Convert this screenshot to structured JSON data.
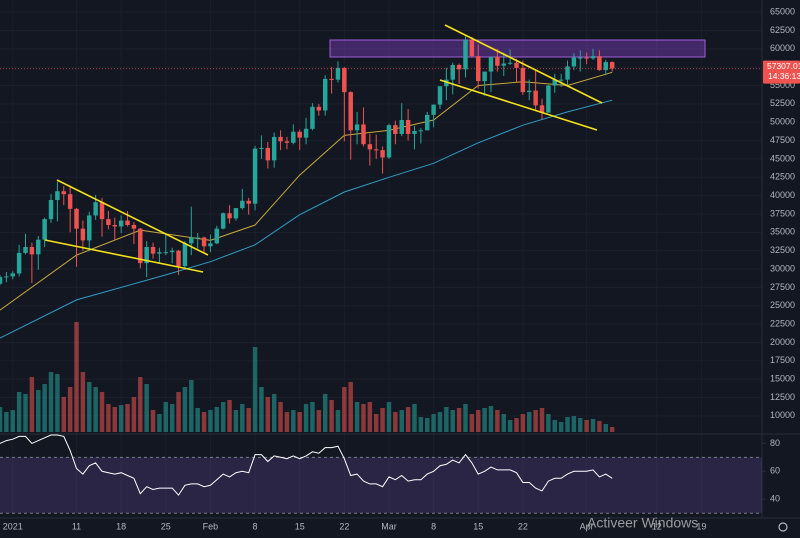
{
  "chart_data": {
    "type": "candlestick",
    "x": [
      -2,
      -1,
      0,
      1,
      2,
      3,
      4,
      5,
      6,
      7,
      8,
      9,
      10,
      11,
      12,
      13,
      14,
      15,
      16,
      17,
      18,
      19,
      20,
      21,
      22,
      23,
      24,
      25,
      26,
      27,
      28,
      29,
      30,
      31,
      32,
      33,
      34,
      35,
      36,
      37,
      38,
      39,
      40,
      41,
      42,
      43,
      44,
      45,
      46,
      47,
      48,
      49,
      50,
      51,
      52,
      53,
      54,
      55,
      56,
      57,
      58,
      59,
      60,
      61,
      62,
      63,
      64,
      65,
      66,
      67,
      68,
      69,
      70,
      71,
      72,
      73,
      74,
      75,
      76,
      77,
      78,
      79,
      80,
      81,
      82,
      83,
      84,
      85,
      86,
      87,
      88,
      89,
      90,
      91,
      92,
      93,
      94
    ],
    "open": [
      28000,
      28900,
      29000,
      29400,
      32200,
      33000,
      32000,
      34000,
      36800,
      39400,
      40600,
      40200,
      38200,
      35500,
      33900,
      37300,
      39100,
      36800,
      36000,
      35800,
      36600,
      36000,
      35500,
      30800,
      33000,
      32100,
      32300,
      32300,
      32500,
      30400,
      33500,
      34300,
      34300,
      33100,
      33500,
      35500,
      37600,
      36900,
      38300,
      39300,
      38900,
      46400,
      46500,
      44800,
      48000,
      47400,
      47200,
      48700,
      47900,
      49100,
      52100,
      51600,
      55900,
      55800,
      57400,
      54100,
      48900,
      49700,
      47000,
      46300,
      46200,
      45200,
      49600,
      48400,
      50300,
      48400,
      48800,
      48900,
      51000,
      52400,
      54900,
      55800,
      57800,
      57200,
      61200,
      59000,
      55600,
      56900,
      58900,
      57700,
      58000,
      58100,
      57400,
      54100,
      54300,
      52300,
      51300,
      55000,
      55800,
      55800,
      57600,
      58800,
      58800,
      58700,
      59000,
      57100,
      58200
    ],
    "high": [
      29200,
      29600,
      29700,
      33300,
      34800,
      33600,
      34500,
      37000,
      40200,
      41900,
      41300,
      41400,
      38300,
      36600,
      37800,
      40100,
      39700,
      37900,
      37000,
      37300,
      37900,
      36400,
      35600,
      33800,
      33600,
      32900,
      34900,
      32900,
      32600,
      33800,
      38500,
      34900,
      34400,
      34700,
      35900,
      37700,
      38700,
      38300,
      40900,
      39700,
      46800,
      48200,
      47300,
      48600,
      48900,
      48000,
      49700,
      49000,
      50600,
      52600,
      52500,
      56400,
      57500,
      58300,
      57500,
      54200,
      51400,
      52000,
      48400,
      48300,
      46700,
      49800,
      50200,
      52600,
      51800,
      49500,
      49200,
      51400,
      52400,
      54900,
      57400,
      58100,
      58000,
      61700,
      61600,
      60600,
      56900,
      58900,
      60000,
      59500,
      59900,
      58600,
      58400,
      55800,
      57200,
      53200,
      55100,
      56600,
      56600,
      58400,
      59400,
      59800,
      59500,
      60000,
      59800,
      58500,
      58300
    ],
    "low": [
      27800,
      28200,
      28600,
      29000,
      32000,
      28100,
      29900,
      33000,
      36300,
      36500,
      38700,
      35000,
      30300,
      32500,
      32400,
      36700,
      34400,
      35400,
      33900,
      34900,
      35800,
      33400,
      30100,
      28900,
      31400,
      30900,
      31900,
      30800,
      29200,
      29900,
      31900,
      32800,
      32200,
      32300,
      33400,
      35400,
      36200,
      36600,
      38100,
      37400,
      38000,
      45000,
      43700,
      43800,
      46200,
      46300,
      47000,
      46200,
      47000,
      48900,
      50900,
      50900,
      53900,
      55400,
      47400,
      44900,
      47000,
      46700,
      44100,
      45000,
      43000,
      45000,
      47000,
      48100,
      47500,
      46300,
      47100,
      48900,
      49300,
      51800,
      53000,
      53800,
      55200,
      56100,
      58800,
      54600,
      53600,
      54100,
      56900,
      56300,
      57800,
      55500,
      53700,
      53000,
      51700,
      50400,
      51300,
      54000,
      54800,
      54900,
      57100,
      56900,
      57900,
      58500,
      57000,
      56400,
      56900
    ],
    "close": [
      28900,
      29000,
      29400,
      32200,
      33000,
      32000,
      34000,
      36800,
      39400,
      40600,
      40200,
      38200,
      35500,
      33900,
      37300,
      39100,
      36800,
      36000,
      35800,
      36600,
      36000,
      35500,
      30800,
      33000,
      32100,
      32300,
      32300,
      32500,
      30400,
      33500,
      34300,
      34300,
      33100,
      33500,
      35500,
      37600,
      36900,
      38300,
      39300,
      38900,
      46400,
      46500,
      44800,
      48000,
      47400,
      47200,
      48700,
      47900,
      49100,
      52100,
      51600,
      55900,
      55800,
      57400,
      54100,
      48900,
      49700,
      47000,
      46300,
      46200,
      45200,
      49600,
      48400,
      50300,
      48400,
      48800,
      48900,
      51000,
      52400,
      54900,
      55800,
      57800,
      57200,
      61200,
      59000,
      55600,
      56900,
      58900,
      57700,
      58000,
      58100,
      57400,
      54100,
      54300,
      52300,
      51300,
      55000,
      55800,
      55800,
      57600,
      58800,
      58800,
      58700,
      59000,
      57100,
      58200,
      57307.01
    ],
    "volume": [
      25,
      20,
      22,
      40,
      38,
      55,
      42,
      48,
      60,
      58,
      35,
      45,
      110,
      60,
      50,
      45,
      40,
      28,
      25,
      27,
      28,
      35,
      55,
      48,
      22,
      18,
      30,
      28,
      40,
      45,
      52,
      24,
      20,
      22,
      25,
      30,
      32,
      22,
      28,
      24,
      85,
      45,
      35,
      38,
      30,
      20,
      22,
      20,
      28,
      30,
      22,
      38,
      32,
      22,
      45,
      50,
      30,
      28,
      30,
      18,
      24,
      30,
      20,
      22,
      25,
      28,
      15,
      14,
      18,
      20,
      25,
      22,
      24,
      28,
      18,
      22,
      24,
      26,
      22,
      18,
      12,
      14,
      18,
      20,
      22,
      24,
      18,
      12,
      10,
      15,
      16,
      14,
      12,
      13,
      11,
      8,
      5
    ],
    "up_color": "#26a69a",
    "down_color": "#ef5350",
    "xlim": [
      -2,
      117.5
    ],
    "ylim": [
      7800,
      66650
    ],
    "xticks": [
      {
        "value": 0,
        "label": "2021"
      },
      {
        "value": 10,
        "label": "11"
      },
      {
        "value": 17,
        "label": "18"
      },
      {
        "value": 24,
        "label": "25"
      },
      {
        "value": 31,
        "label": "Feb"
      },
      {
        "value": 38,
        "label": "8"
      },
      {
        "value": 45,
        "label": "15"
      },
      {
        "value": 52,
        "label": "22"
      },
      {
        "value": 59,
        "label": "Mar"
      },
      {
        "value": 66,
        "label": "8"
      },
      {
        "value": 73,
        "label": "15"
      },
      {
        "value": 80,
        "label": "22"
      },
      {
        "value": 90,
        "label": "Apr"
      },
      {
        "value": 101,
        "label": "12"
      },
      {
        "value": 108,
        "label": "19"
      }
    ],
    "yticks": [
      10000,
      12500,
      15000,
      17500,
      20000,
      22500,
      25000,
      27500,
      30000,
      32500,
      35000,
      37500,
      40000,
      42500,
      45000,
      47500,
      50000,
      52500,
      55000,
      57500,
      60000,
      62500,
      65000
    ],
    "grid": true,
    "countdown": "14:36:13",
    "moving_averages": [
      {
        "color": "#c9a93a",
        "x": [
          -2,
          10,
          20,
          31,
          38,
          45,
          52,
          59,
          66,
          73,
          80,
          87,
          94
        ],
        "values": [
          24400,
          31900,
          35300,
          33900,
          36000,
          42800,
          48200,
          48900,
          50300,
          55000,
          55500,
          55000,
          56800
        ]
      },
      {
        "color": "#2f9fc4",
        "x": [
          -2,
          10,
          24,
          31,
          38,
          45,
          52,
          59,
          66,
          73,
          80,
          87,
          94
        ],
        "values": [
          20600,
          25800,
          29200,
          31000,
          33300,
          37400,
          40500,
          42500,
          44400,
          47200,
          49600,
          51400,
          53000
        ]
      }
    ],
    "rsi": {
      "color": "#ffffff",
      "ylim": [
        28,
        86
      ],
      "yticks": [
        40,
        60,
        80
      ],
      "bands": [
        30,
        70
      ],
      "values": [
        80,
        82,
        83,
        85,
        85,
        80,
        82,
        84,
        86,
        86,
        85,
        75,
        62,
        58,
        64,
        66,
        60,
        59,
        58,
        59,
        57,
        55,
        44,
        49,
        47,
        48,
        48,
        48,
        43,
        50,
        51,
        51,
        49,
        50,
        54,
        58,
        56,
        59,
        60,
        59,
        72,
        72,
        67,
        71,
        70,
        69,
        71,
        69,
        71,
        74,
        73,
        77,
        77,
        78,
        69,
        57,
        58,
        53,
        51,
        51,
        49,
        56,
        54,
        57,
        53,
        54,
        54,
        58,
        60,
        64,
        65,
        68,
        66,
        72,
        66,
        58,
        60,
        63,
        61,
        61,
        61,
        59,
        52,
        52,
        48,
        46,
        53,
        55,
        55,
        58,
        60,
        60,
        60,
        61,
        56,
        58,
        55
      ]
    }
  },
  "watermark": "Activeer Windows"
}
